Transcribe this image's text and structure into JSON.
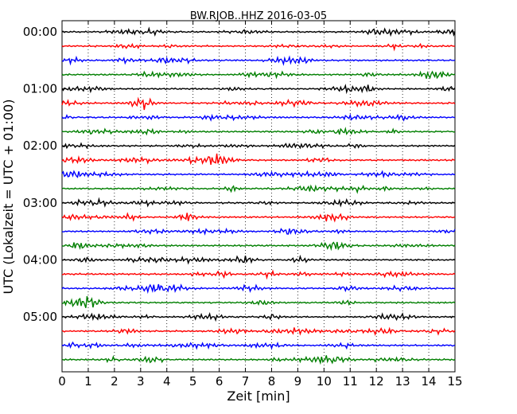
{
  "chart_data": {
    "type": "line",
    "title": "BW.RJOB..HHZ 2016-03-05",
    "xlabel": "Zeit  [min]",
    "ylabel": "UTC (Lokalzeit = UTC + 01:00)",
    "xlim": [
      0,
      15
    ],
    "x_ticks": [
      "0",
      "1",
      "2",
      "3",
      "4",
      "5",
      "6",
      "7",
      "8",
      "9",
      "10",
      "11",
      "12",
      "13",
      "14",
      "15"
    ],
    "y_ticks": [
      "00:00",
      "01:00",
      "02:00",
      "03:00",
      "04:00",
      "05:00"
    ],
    "grid": "vertical dotted",
    "trace_colors": [
      "#000000",
      "#ff0000",
      "#0000ff",
      "#007f00"
    ],
    "traces": [
      {
        "start": "00:00",
        "color": "#000000"
      },
      {
        "start": "00:15",
        "color": "#ff0000"
      },
      {
        "start": "00:30",
        "color": "#0000ff"
      },
      {
        "start": "00:45",
        "color": "#007f00"
      },
      {
        "start": "01:00",
        "color": "#000000"
      },
      {
        "start": "01:15",
        "color": "#ff0000"
      },
      {
        "start": "01:30",
        "color": "#0000ff"
      },
      {
        "start": "01:45",
        "color": "#007f00"
      },
      {
        "start": "02:00",
        "color": "#000000"
      },
      {
        "start": "02:15",
        "color": "#ff0000"
      },
      {
        "start": "02:30",
        "color": "#0000ff"
      },
      {
        "start": "02:45",
        "color": "#007f00"
      },
      {
        "start": "03:00",
        "color": "#000000"
      },
      {
        "start": "03:15",
        "color": "#ff0000"
      },
      {
        "start": "03:30",
        "color": "#0000ff"
      },
      {
        "start": "03:45",
        "color": "#007f00"
      },
      {
        "start": "04:00",
        "color": "#000000"
      },
      {
        "start": "04:15",
        "color": "#ff0000"
      },
      {
        "start": "04:30",
        "color": "#0000ff"
      },
      {
        "start": "04:45",
        "color": "#007f00"
      },
      {
        "start": "05:00",
        "color": "#000000"
      },
      {
        "start": "05:15",
        "color": "#ff0000"
      },
      {
        "start": "05:30",
        "color": "#0000ff"
      },
      {
        "start": "05:45",
        "color": "#007f00"
      }
    ]
  }
}
